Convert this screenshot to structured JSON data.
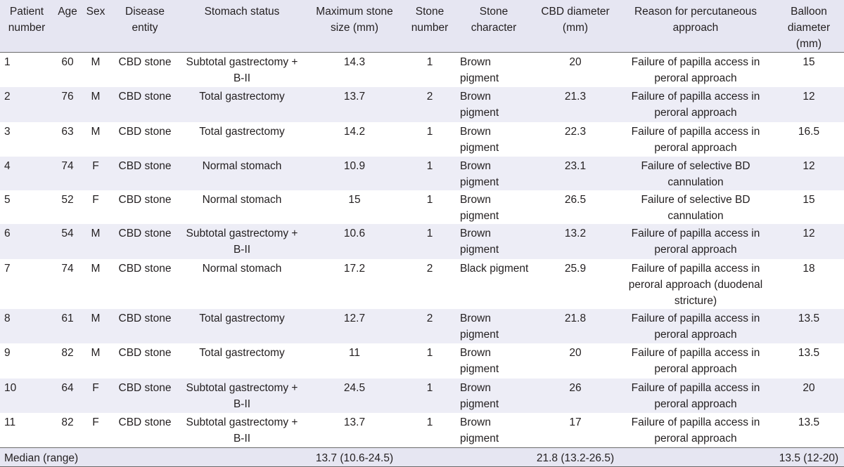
{
  "headers": {
    "patient": "Patient number",
    "age": "Age",
    "sex": "Sex",
    "disease": "Disease entity",
    "stomach": "Stomach status",
    "max_stone": "Maximum stone size (mm)",
    "stone_number": "Stone number",
    "stone_char": "Stone character",
    "cbd": "CBD diameter (mm)",
    "reason": "Reason for percutaneous approach",
    "balloon": "Balloon diameter (mm)"
  },
  "rows": [
    {
      "patient": "1",
      "age": "60",
      "sex": "M",
      "disease": "CBD stone",
      "stomach": "Subtotal gastrectomy + B-II",
      "max_stone": "14.3",
      "stone_number": "1",
      "stone_char": "Brown pigment",
      "cbd": "20",
      "reason": "Failure of papilla access in peroral approach",
      "balloon": "15"
    },
    {
      "patient": "2",
      "age": "76",
      "sex": "M",
      "disease": "CBD stone",
      "stomach": "Total gastrectomy",
      "max_stone": "13.7",
      "stone_number": "2",
      "stone_char": "Brown pigment",
      "cbd": "21.3",
      "reason": "Failure of papilla access in peroral approach",
      "balloon": "12"
    },
    {
      "patient": "3",
      "age": "63",
      "sex": "M",
      "disease": "CBD stone",
      "stomach": "Total gastrectomy",
      "max_stone": "14.2",
      "stone_number": "1",
      "stone_char": "Brown pigment",
      "cbd": "22.3",
      "reason": "Failure of papilla access in peroral approach",
      "balloon": "16.5"
    },
    {
      "patient": "4",
      "age": "74",
      "sex": "F",
      "disease": "CBD stone",
      "stomach": "Normal stomach",
      "max_stone": "10.9",
      "stone_number": "1",
      "stone_char": "Brown pigment",
      "cbd": "23.1",
      "reason": "Failure of selective BD cannulation",
      "balloon": "12"
    },
    {
      "patient": "5",
      "age": "52",
      "sex": "F",
      "disease": "CBD stone",
      "stomach": "Normal stomach",
      "max_stone": "15",
      "stone_number": "1",
      "stone_char": "Brown pigment",
      "cbd": "26.5",
      "reason": "Failure of selective BD cannulation",
      "balloon": "15"
    },
    {
      "patient": "6",
      "age": "54",
      "sex": "M",
      "disease": "CBD stone",
      "stomach": "Subtotal gastrectomy + B-II",
      "max_stone": "10.6",
      "stone_number": "1",
      "stone_char": "Brown pigment",
      "cbd": "13.2",
      "reason": "Failure of papilla access in peroral approach",
      "balloon": "12"
    },
    {
      "patient": "7",
      "age": "74",
      "sex": "M",
      "disease": "CBD stone",
      "stomach": "Normal stomach",
      "max_stone": "17.2",
      "stone_number": "2",
      "stone_char": "Black pigment",
      "cbd": "25.9",
      "reason": "Failure of papilla access in peroral approach (duodenal stricture)",
      "balloon": "18"
    },
    {
      "patient": "8",
      "age": "61",
      "sex": "M",
      "disease": "CBD stone",
      "stomach": "Total gastrectomy",
      "max_stone": "12.7",
      "stone_number": "2",
      "stone_char": "Brown pigment",
      "cbd": "21.8",
      "reason": "Failure of papilla access in peroral approach",
      "balloon": "13.5"
    },
    {
      "patient": "9",
      "age": "82",
      "sex": "M",
      "disease": "CBD stone",
      "stomach": "Total gastrectomy",
      "max_stone": "11",
      "stone_number": "1",
      "stone_char": "Brown pigment",
      "cbd": "20",
      "reason": "Failure of papilla access in peroral approach",
      "balloon": "13.5"
    },
    {
      "patient": "10",
      "age": "64",
      "sex": "F",
      "disease": "CBD stone",
      "stomach": "Subtotal gastrectomy + B-II",
      "max_stone": "24.5",
      "stone_number": "1",
      "stone_char": "Brown pigment",
      "cbd": "26",
      "reason": "Failure of papilla access in peroral approach",
      "balloon": "20"
    },
    {
      "patient": "11",
      "age": "82",
      "sex": "F",
      "disease": "CBD stone",
      "stomach": "Subtotal gastrectomy + B-II",
      "max_stone": "13.7",
      "stone_number": "1",
      "stone_char": "Brown pigment",
      "cbd": "17",
      "reason": "Failure of papilla access in peroral approach",
      "balloon": "13.5"
    }
  ],
  "footer": {
    "label": "Median (range)",
    "max_stone": "13.7 (10.6-24.5)",
    "cbd": "21.8 (13.2-26.5)",
    "balloon": "13.5 (12-20)"
  }
}
